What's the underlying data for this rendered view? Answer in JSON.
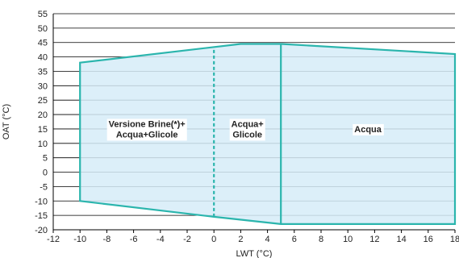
{
  "chart_data": {
    "type": "area",
    "xlabel": "LWT (°C)",
    "ylabel": "OAT (°C)",
    "xlim": [
      -12,
      18
    ],
    "ylim": [
      -20,
      55
    ],
    "x_ticks": [
      -12,
      -10,
      -8,
      -6,
      -4,
      -2,
      0,
      2,
      4,
      6,
      8,
      10,
      12,
      14,
      16,
      18
    ],
    "y_ticks": [
      -20,
      -15,
      -10,
      -5,
      0,
      5,
      10,
      15,
      20,
      25,
      30,
      35,
      40,
      45,
      50,
      55
    ],
    "grid": "horizontal",
    "envelope": {
      "points": [
        [
          -10,
          38
        ],
        [
          2,
          44.5
        ],
        [
          5,
          44.5
        ],
        [
          18,
          41
        ],
        [
          18,
          -18
        ],
        [
          5,
          -18
        ],
        [
          0,
          -15.5
        ],
        [
          -10,
          -10
        ]
      ]
    },
    "dividers": [
      {
        "x": 0,
        "y_range": [
          -15.5,
          43
        ],
        "style": "dashed"
      },
      {
        "x": 5,
        "y_range": [
          -18,
          44.5
        ],
        "style": "solid"
      }
    ],
    "regions": [
      {
        "lines": [
          "Versione Brine(*)+",
          "Acqua+Glicole"
        ],
        "x": -5,
        "y": 15
      },
      {
        "lines": [
          "Acqua+",
          "Glicole"
        ],
        "x": 2.5,
        "y": 15
      },
      {
        "lines": [
          "Acqua"
        ],
        "x": 11.5,
        "y": 15
      }
    ],
    "colors": {
      "fill": "#d6ecf8",
      "border": "#2bb5ad",
      "grid": "#000000"
    }
  }
}
